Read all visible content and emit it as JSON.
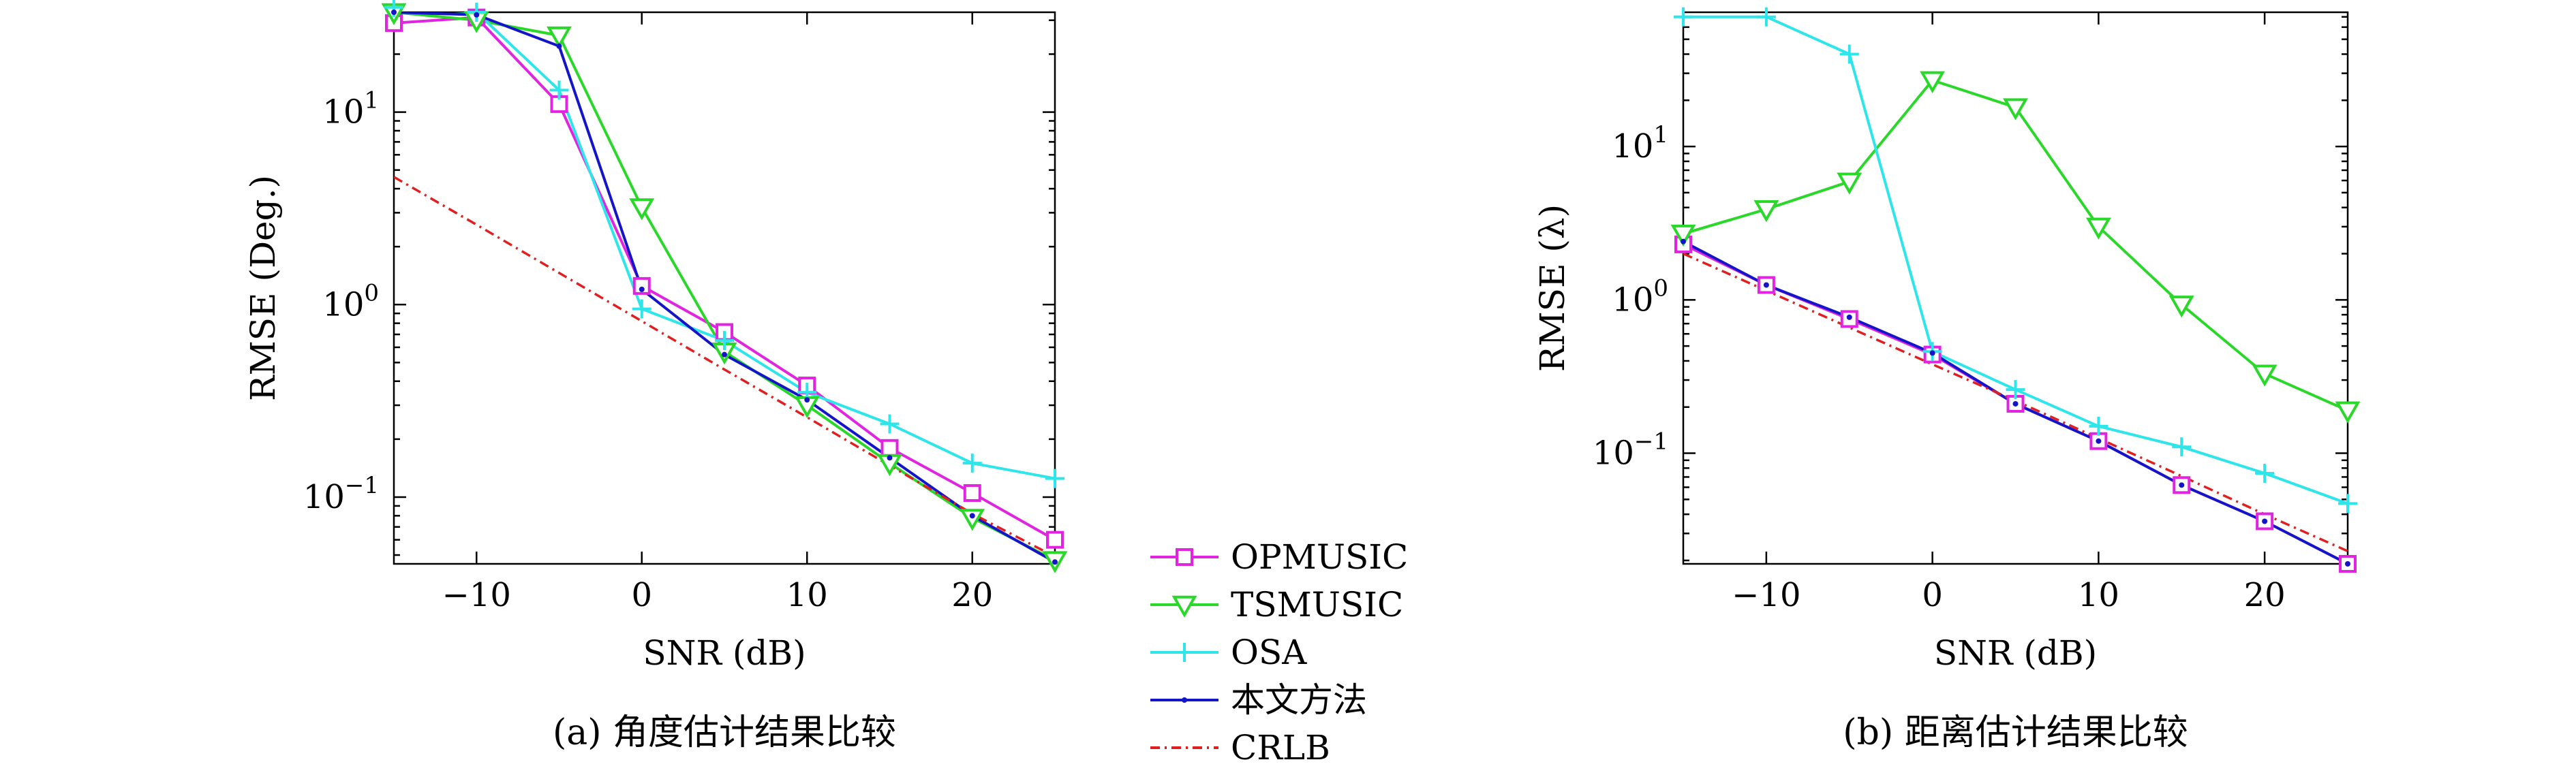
{
  "legend": {
    "position": "bottom-center",
    "items": [
      {
        "label": "OPMUSIC",
        "color": "#e024e0",
        "marker": "square"
      },
      {
        "label": "TSMUSIC",
        "color": "#2ad82a",
        "marker": "triangle-down"
      },
      {
        "label": "OSA",
        "color": "#2ee6ea",
        "marker": "plus"
      },
      {
        "label": "本文方法",
        "color": "#1414c8",
        "marker": "dot"
      },
      {
        "label": "CRLB",
        "color": "#e02020",
        "marker": "none",
        "dash": "dash-dot"
      }
    ]
  },
  "chart_data": [
    {
      "type": "line",
      "caption": "(a) 角度估计结果比较",
      "xlabel": "SNR (dB)",
      "ylabel": "RMSE (Deg.)",
      "yscale": "log",
      "xlim": [
        -15,
        25
      ],
      "ylim": [
        0.045,
        33
      ],
      "xticks": [
        -10,
        0,
        10,
        20
      ],
      "xtick_labels": [
        "−10",
        "0",
        "10",
        "20"
      ],
      "yticks": [
        {
          "value": 0.1,
          "base": "10",
          "exp": "−1"
        },
        {
          "value": 1,
          "base": "10",
          "exp": "0"
        },
        {
          "value": 10,
          "base": "10",
          "exp": "1"
        }
      ],
      "grid": false,
      "x": [
        -15,
        -10,
        -5,
        0,
        5,
        10,
        15,
        20,
        25
      ],
      "series": [
        {
          "name": "OPMUSIC",
          "values": [
            29,
            31,
            11,
            1.25,
            0.72,
            0.38,
            0.18,
            0.105,
            0.06
          ]
        },
        {
          "name": "TSMUSIC",
          "values": [
            33,
            30,
            25,
            3.2,
            0.57,
            0.3,
            0.15,
            0.078,
            0.047
          ]
        },
        {
          "name": "OSA",
          "values": [
            35,
            33,
            13,
            0.95,
            0.65,
            0.35,
            0.24,
            0.15,
            0.125
          ]
        },
        {
          "name": "本文方法",
          "values": [
            33,
            32,
            22,
            1.2,
            0.55,
            0.32,
            0.16,
            0.08,
            0.046
          ]
        },
        {
          "name": "CRLB",
          "values": [
            4.6,
            2.6,
            1.46,
            0.82,
            0.46,
            0.26,
            0.146,
            0.082,
            0.049
          ]
        }
      ]
    },
    {
      "type": "line",
      "caption": "(b) 距离估计结果比较",
      "xlabel": "SNR (dB)",
      "ylabel": "RMSE (λ)",
      "yscale": "log",
      "xlim": [
        -15,
        25
      ],
      "ylim": [
        0.019,
        75
      ],
      "xticks": [
        -10,
        0,
        10,
        20
      ],
      "xtick_labels": [
        "−10",
        "0",
        "10",
        "20"
      ],
      "yticks": [
        {
          "value": 0.1,
          "base": "10",
          "exp": "−1"
        },
        {
          "value": 1,
          "base": "10",
          "exp": "0"
        },
        {
          "value": 10,
          "base": "10",
          "exp": "1"
        }
      ],
      "grid": false,
      "x": [
        -15,
        -10,
        -5,
        0,
        5,
        10,
        15,
        20,
        25
      ],
      "series": [
        {
          "name": "OPMUSIC",
          "values": [
            2.3,
            1.25,
            0.75,
            0.44,
            0.21,
            0.12,
            0.062,
            0.036,
            0.019
          ]
        },
        {
          "name": "TSMUSIC",
          "values": [
            2.7,
            3.9,
            5.9,
            27,
            18,
            3,
            0.93,
            0.33,
            0.19
          ]
        },
        {
          "name": "OSA",
          "values": [
            70,
            70,
            40,
            0.46,
            0.26,
            0.15,
            0.11,
            0.074,
            0.047
          ]
        },
        {
          "name": "本文方法",
          "values": [
            2.4,
            1.25,
            0.77,
            0.45,
            0.21,
            0.12,
            0.062,
            0.036,
            0.019
          ]
        },
        {
          "name": "CRLB",
          "values": [
            2.0,
            1.15,
            0.66,
            0.38,
            0.22,
            0.125,
            0.071,
            0.04,
            0.023
          ]
        }
      ]
    }
  ]
}
